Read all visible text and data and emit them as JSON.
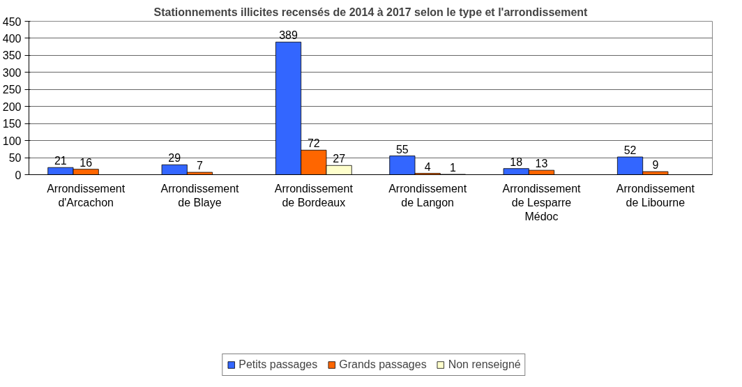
{
  "chart_data": {
    "type": "bar",
    "title": "Stationnements illicites recensés de 2014 à 2017 selon le type et l'arrondissement",
    "categories": [
      "Arrondissement d'Arcachon",
      "Arrondissement de Blaye",
      "Arrondissement de Bordeaux",
      "Arrondissement de Langon",
      "Arrondissement de Lesparre Médoc",
      "Arrondissement de Libourne"
    ],
    "series": [
      {
        "name": "Petits passages",
        "color": "#3366ff",
        "values": [
          21,
          29,
          389,
          55,
          18,
          52
        ]
      },
      {
        "name": "Grands passages",
        "color": "#ff6600",
        "values": [
          16,
          7,
          72,
          4,
          13,
          9
        ]
      },
      {
        "name": "Non renseigné",
        "color": "#ffffcc",
        "values": [
          null,
          null,
          27,
          1,
          null,
          null
        ]
      }
    ],
    "ylim": [
      0,
      450
    ],
    "yticks": [
      0,
      50,
      100,
      150,
      200,
      250,
      300,
      350,
      400,
      450
    ],
    "grid": "y",
    "legend": "bottom",
    "data_labels": true
  }
}
